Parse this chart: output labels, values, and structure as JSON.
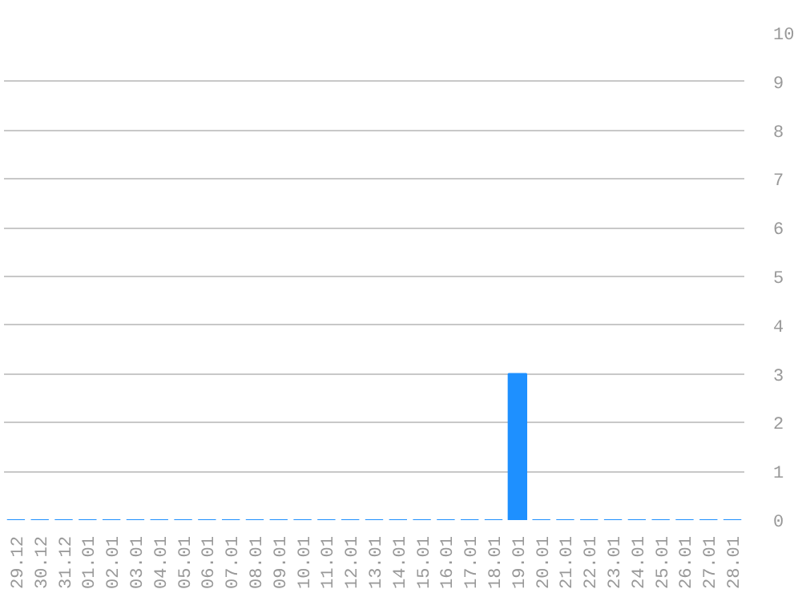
{
  "chart_data": {
    "type": "bar",
    "categories": [
      "29.12",
      "30.12",
      "31.12",
      "01.01",
      "02.01",
      "03.01",
      "04.01",
      "05.01",
      "06.01",
      "07.01",
      "08.01",
      "09.01",
      "10.01",
      "11.01",
      "12.01",
      "13.01",
      "14.01",
      "15.01",
      "16.01",
      "17.01",
      "18.01",
      "19.01",
      "20.01",
      "21.01",
      "22.01",
      "23.01",
      "24.01",
      "25.01",
      "26.01",
      "27.01",
      "28.01"
    ],
    "values": [
      0,
      0,
      0,
      0,
      0,
      0,
      0,
      0,
      0,
      0,
      0,
      0,
      0,
      0,
      0,
      0,
      0,
      0,
      0,
      0,
      0,
      3,
      0,
      0,
      0,
      0,
      0,
      0,
      0,
      0,
      0
    ],
    "color": "#1e90ff",
    "ylim": [
      0,
      10
    ],
    "yticks": [
      0,
      1,
      2,
      3,
      4,
      5,
      6,
      7,
      8,
      9,
      10
    ],
    "grid": "y"
  }
}
